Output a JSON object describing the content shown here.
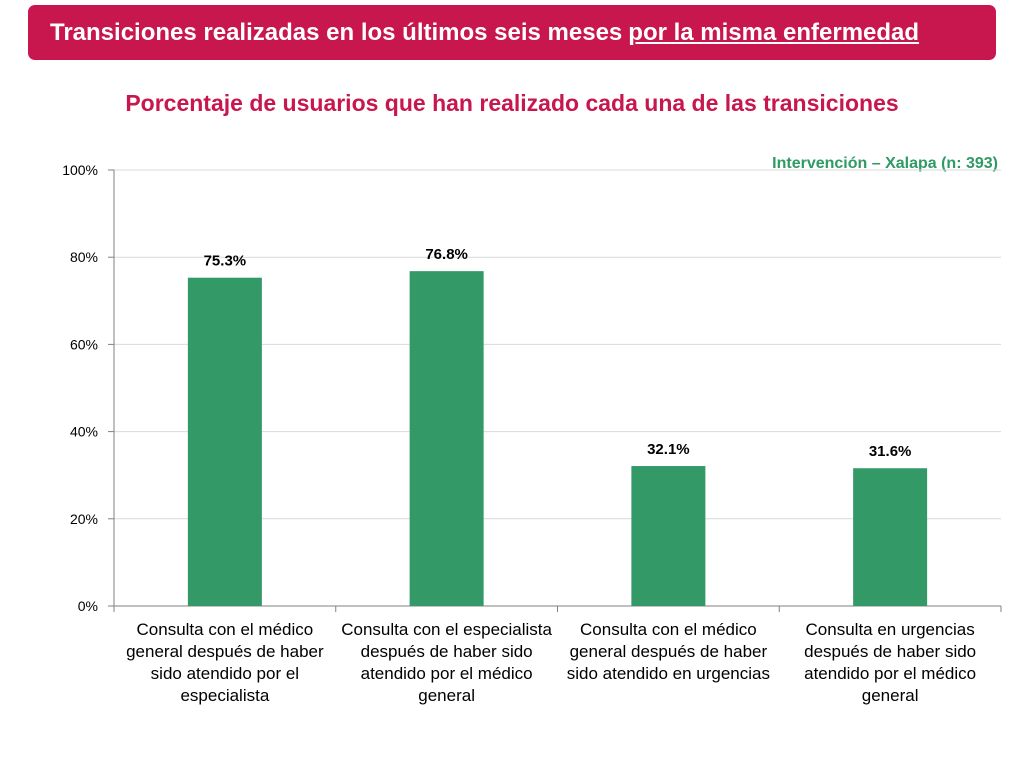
{
  "header": {
    "title_main": "Transiciones realizadas en los últimos seis meses",
    "title_emphasis": "por la misma enfermedad"
  },
  "colors": {
    "brand": "#c8164f",
    "bar": "#339966",
    "legend_text": "#2f9a63"
  },
  "chart_data": {
    "type": "bar",
    "title": "Porcentaje de usuarios que han realizado cada una de las transiciones",
    "legend": "Intervención – Xalapa (n: 393)",
    "legend_position": "top-right",
    "categories": [
      "Consulta con el médico general después de haber sido atendido por el especialista",
      "Consulta con el especialista después de haber sido atendido por el médico general",
      "Consulta con el médico general después de haber sido atendido en urgencias",
      "Consulta en urgencias después de haber sido atendido por el médico general"
    ],
    "values": [
      75.3,
      76.8,
      32.1,
      31.6
    ],
    "data_labels": [
      "75.3%",
      "76.8%",
      "32.1%",
      "31.6%"
    ],
    "y_ticks": [
      0,
      20,
      40,
      60,
      80,
      100
    ],
    "y_tick_labels": [
      "0%",
      "20%",
      "40%",
      "60%",
      "80%",
      "100%"
    ],
    "ylim": [
      0,
      100
    ],
    "grid": true,
    "xlabel": "",
    "ylabel": ""
  }
}
